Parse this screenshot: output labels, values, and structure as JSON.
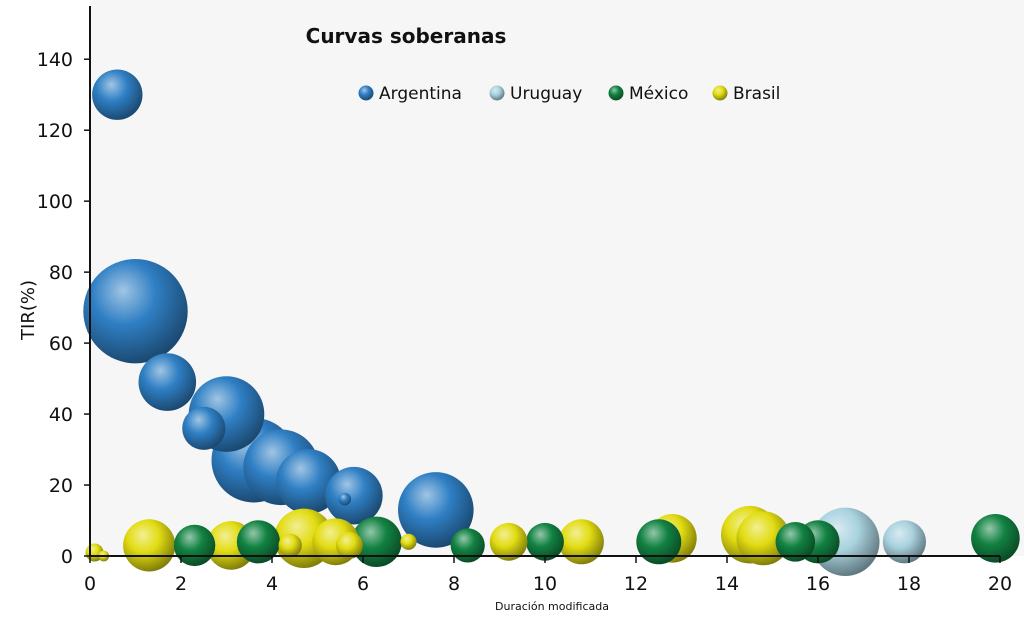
{
  "chart_data": {
    "type": "scatter",
    "title": "Curvas soberanas",
    "xlabel": "Duración modificada",
    "ylabel": "TIR(%)",
    "xlim": [
      0,
      20
    ],
    "ylim": [
      0,
      155
    ],
    "xticks": [
      0,
      2,
      4,
      6,
      8,
      10,
      12,
      14,
      16,
      18,
      20
    ],
    "yticks": [
      0,
      20,
      40,
      60,
      80,
      100,
      120,
      140
    ],
    "grid": false,
    "legend": "top",
    "series": [
      {
        "name": "Argentina",
        "color": "#2f7fc4",
        "points": [
          {
            "x": 0.6,
            "y": 130,
            "size": 0.28
          },
          {
            "x": 1.0,
            "y": 69,
            "size": 0.58
          },
          {
            "x": 1.7,
            "y": 49,
            "size": 0.32
          },
          {
            "x": 3.0,
            "y": 40,
            "size": 0.42
          },
          {
            "x": 2.5,
            "y": 36,
            "size": 0.24
          },
          {
            "x": 3.6,
            "y": 27,
            "size": 0.47
          },
          {
            "x": 4.2,
            "y": 25,
            "size": 0.42
          },
          {
            "x": 4.8,
            "y": 21,
            "size": 0.36
          },
          {
            "x": 5.8,
            "y": 17,
            "size": 0.32
          },
          {
            "x": 5.6,
            "y": 16,
            "size": 0.07
          },
          {
            "x": 7.6,
            "y": 13,
            "size": 0.42
          }
        ]
      },
      {
        "name": "Uruguay",
        "color": "#a9d2df",
        "points": [
          {
            "x": 16.6,
            "y": 4,
            "size": 0.38
          },
          {
            "x": 17.9,
            "y": 4,
            "size": 0.24
          }
        ]
      },
      {
        "name": "México",
        "color": "#128242",
        "points": [
          {
            "x": 2.3,
            "y": 3,
            "size": 0.23
          },
          {
            "x": 3.7,
            "y": 4,
            "size": 0.24
          },
          {
            "x": 6.3,
            "y": 4,
            "size": 0.28
          },
          {
            "x": 8.3,
            "y": 3,
            "size": 0.19
          },
          {
            "x": 10.0,
            "y": 4,
            "size": 0.21
          },
          {
            "x": 12.5,
            "y": 4,
            "size": 0.25
          },
          {
            "x": 15.5,
            "y": 4,
            "size": 0.22
          },
          {
            "x": 16.0,
            "y": 4,
            "size": 0.24
          },
          {
            "x": 19.9,
            "y": 5,
            "size": 0.27
          }
        ]
      },
      {
        "name": "Brasil",
        "color": "#e2dc12",
        "points": [
          {
            "x": 0.1,
            "y": 1,
            "size": 0.1
          },
          {
            "x": 0.3,
            "y": 0,
            "size": 0.06
          },
          {
            "x": 1.3,
            "y": 3,
            "size": 0.29
          },
          {
            "x": 3.1,
            "y": 3,
            "size": 0.27
          },
          {
            "x": 4.7,
            "y": 5,
            "size": 0.33
          },
          {
            "x": 4.4,
            "y": 3,
            "size": 0.13
          },
          {
            "x": 5.4,
            "y": 4,
            "size": 0.26
          },
          {
            "x": 5.7,
            "y": 3,
            "size": 0.15
          },
          {
            "x": 7.0,
            "y": 4,
            "size": 0.09
          },
          {
            "x": 9.2,
            "y": 4,
            "size": 0.21
          },
          {
            "x": 10.8,
            "y": 4,
            "size": 0.25
          },
          {
            "x": 12.8,
            "y": 5,
            "size": 0.27
          },
          {
            "x": 14.5,
            "y": 6,
            "size": 0.32
          },
          {
            "x": 14.8,
            "y": 5,
            "size": 0.3
          }
        ]
      }
    ]
  }
}
